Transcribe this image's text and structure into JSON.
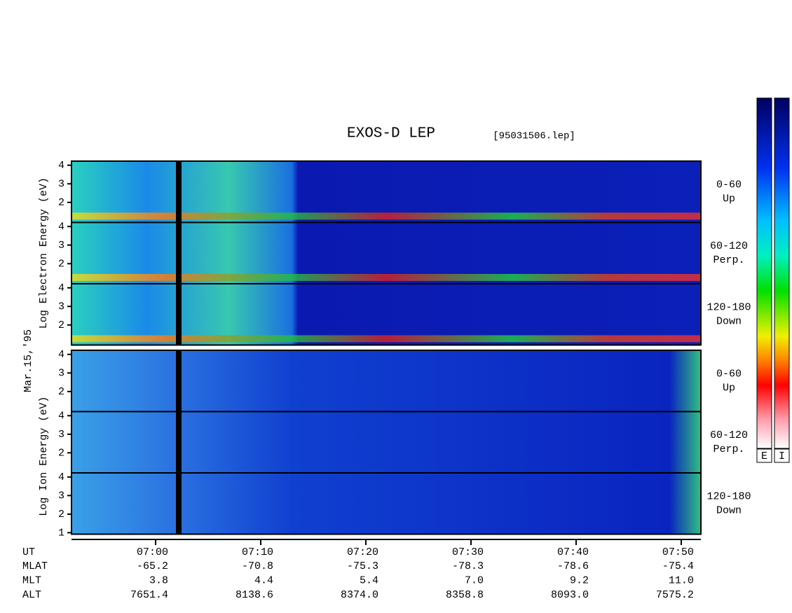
{
  "chart_data": {
    "type": "spectrogram",
    "title": "EXOS-D LEP",
    "file": "[95031506.lep]",
    "date": "Mar.15,'95",
    "ylim": [
      0.92,
      4.22
    ],
    "xlim": [
      412,
      471.87
    ],
    "x_label": "UT",
    "xticks": [
      {
        "value": 420,
        "label": "07:00"
      },
      {
        "value": 430,
        "label": "07:10"
      },
      {
        "value": 440,
        "label": "07:20"
      },
      {
        "value": 450,
        "label": "07:30"
      },
      {
        "value": 460,
        "label": "07:40"
      },
      {
        "value": 470,
        "label": "07:50"
      }
    ],
    "ephemeris": [
      {
        "name": "MLAT",
        "values": [
          "-65.2",
          "-70.8",
          "-75.3",
          "-78.3",
          "-78.6",
          "-75.4"
        ]
      },
      {
        "name": "MLT",
        "values": [
          "3.8",
          "4.4",
          "5.4",
          "7.0",
          "9.2",
          "11.0"
        ]
      },
      {
        "name": "ALT",
        "values": [
          "7651.4",
          "8138.6",
          "8374.0",
          "8358.8",
          "8093.0",
          "7575.2"
        ]
      }
    ],
    "groups": [
      {
        "label": "Log Electron Energy (eV)",
        "panels": [
          {
            "pitch": "0-60",
            "direction": "Up",
            "yticks": [
              2,
              3,
              4
            ]
          },
          {
            "pitch": "60-120",
            "direction": "Perp.",
            "yticks": [
              2,
              3,
              4
            ]
          },
          {
            "pitch": "120-180",
            "direction": "Down",
            "yticks": [
              2,
              3,
              4
            ]
          }
        ]
      },
      {
        "label": "Log Ion Energy (eV)",
        "panels": [
          {
            "pitch": "0-60",
            "direction": "Up",
            "yticks": [
              2,
              3,
              4
            ]
          },
          {
            "pitch": "60-120",
            "direction": "Perp.",
            "yticks": [
              2,
              3,
              4
            ]
          },
          {
            "pitch": "120-180",
            "direction": "Down",
            "yticks": [
              1,
              2,
              3,
              4
            ]
          }
        ]
      }
    ],
    "colorbars": [
      "E",
      "I"
    ]
  }
}
